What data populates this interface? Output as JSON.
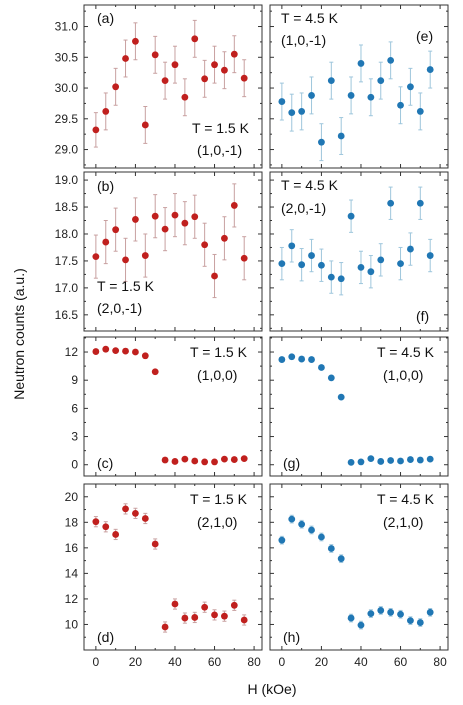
{
  "figure": {
    "ylabel": "Neutron counts (a.u.)",
    "xlabel": "H (kOe)",
    "colors": {
      "low_T": "#c0201e",
      "high_T": "#2077b4",
      "error_bar_low_T": "#c8a0a0",
      "error_bar_high_T": "#9ec6dc"
    }
  },
  "chart_data": [
    {
      "type": "scatter",
      "panel": "(a)",
      "annotation_T": "T = 1.5 K",
      "annotation_q": "(1,0,-1)",
      "color": "#c0201e",
      "xlim": [
        -6,
        84
      ],
      "ylim": [
        28.7,
        31.35
      ],
      "yticks": [
        29.0,
        29.5,
        30.0,
        30.5,
        31.0
      ],
      "ytick_labels": [
        "29.0",
        "29.5",
        "30.0",
        "30.5",
        "31.0"
      ],
      "x": [
        0,
        5,
        10,
        15,
        20,
        25,
        30,
        35,
        40,
        45,
        50,
        55,
        60,
        65,
        70,
        75
      ],
      "y": [
        29.32,
        29.62,
        30.02,
        30.48,
        30.76,
        29.4,
        30.54,
        30.12,
        30.38,
        29.85,
        30.8,
        30.15,
        30.38,
        30.29,
        30.55,
        30.16
      ],
      "yerr": [
        0.28,
        0.3,
        0.3,
        0.3,
        0.3,
        0.3,
        0.3,
        0.3,
        0.3,
        0.3,
        0.3,
        0.3,
        0.3,
        0.3,
        0.3,
        0.3
      ]
    },
    {
      "type": "scatter",
      "panel": "(b)",
      "annotation_T": "T = 1.5 K",
      "annotation_q": "(2,0,-1)",
      "color": "#c0201e",
      "xlim": [
        -6,
        84
      ],
      "ylim": [
        16.2,
        19.15
      ],
      "yticks": [
        16.5,
        17.0,
        17.5,
        18.0,
        18.5,
        19.0
      ],
      "ytick_labels": [
        "16.5",
        "17.0",
        "17.5",
        "18.0",
        "18.5",
        "19.0"
      ],
      "x": [
        0,
        5,
        10,
        15,
        20,
        25,
        30,
        35,
        40,
        45,
        50,
        55,
        60,
        65,
        70,
        75
      ],
      "y": [
        17.58,
        17.85,
        18.08,
        17.52,
        18.27,
        17.6,
        18.33,
        18.09,
        18.35,
        18.2,
        18.32,
        17.8,
        17.22,
        17.92,
        18.53,
        17.55
      ],
      "yerr": [
        0.4,
        0.4,
        0.4,
        0.4,
        0.4,
        0.4,
        0.4,
        0.4,
        0.4,
        0.4,
        0.4,
        0.4,
        0.4,
        0.4,
        0.4,
        0.4
      ]
    },
    {
      "type": "scatter",
      "panel": "(c)",
      "annotation_T": "T = 1.5 K",
      "annotation_q": "(1,0,0)",
      "color": "#c0201e",
      "xlim": [
        -6,
        84
      ],
      "ylim": [
        -1.2,
        13.6
      ],
      "yticks": [
        0,
        3,
        6,
        9,
        12
      ],
      "ytick_labels": [
        "0",
        "3",
        "6",
        "9",
        "12"
      ],
      "x": [
        0,
        5,
        10,
        15,
        20,
        25,
        30,
        35,
        40,
        45,
        50,
        55,
        60,
        65,
        70,
        75
      ],
      "y": [
        12.05,
        12.3,
        12.15,
        12.1,
        12.0,
        11.6,
        9.9,
        0.5,
        0.35,
        0.6,
        0.4,
        0.3,
        0.3,
        0.6,
        0.55,
        0.65
      ],
      "yerr": [
        0.2,
        0.2,
        0.2,
        0.2,
        0.2,
        0.2,
        0.2,
        0.2,
        0.2,
        0.2,
        0.2,
        0.2,
        0.2,
        0.2,
        0.2,
        0.2
      ]
    },
    {
      "type": "scatter",
      "panel": "(d)",
      "annotation_T": "T = 1.5 K",
      "annotation_q": "(2,1,0)",
      "color": "#c0201e",
      "xlim": [
        -6,
        84
      ],
      "ylim": [
        8.0,
        21.0
      ],
      "yticks": [
        10,
        12,
        14,
        16,
        18,
        20
      ],
      "ytick_labels": [
        "10",
        "12",
        "14",
        "16",
        "18",
        "20"
      ],
      "x": [
        0,
        5,
        10,
        15,
        20,
        25,
        30,
        35,
        40,
        45,
        50,
        55,
        60,
        65,
        70,
        75
      ],
      "y": [
        18.05,
        17.65,
        17.05,
        19.05,
        18.7,
        18.3,
        16.3,
        9.8,
        11.6,
        10.5,
        10.55,
        11.35,
        10.75,
        10.65,
        11.5,
        10.35
      ],
      "yerr": [
        0.4,
        0.4,
        0.4,
        0.4,
        0.4,
        0.4,
        0.4,
        0.4,
        0.4,
        0.4,
        0.4,
        0.4,
        0.4,
        0.4,
        0.4,
        0.4
      ]
    },
    {
      "type": "scatter",
      "panel": "(e)",
      "annotation_T": "T = 4.5 K",
      "annotation_q": "(1,0,-1)",
      "color": "#2077b4",
      "xlim": [
        -6,
        84
      ],
      "ylim": [
        28.7,
        31.35
      ],
      "yticks": [
        29.0,
        29.5,
        30.0,
        30.5,
        31.0
      ],
      "ytick_labels": [],
      "x": [
        0,
        5,
        10,
        15,
        20,
        25,
        30,
        35,
        40,
        45,
        50,
        55,
        60,
        65,
        70,
        75
      ],
      "y": [
        29.78,
        29.6,
        29.62,
        29.88,
        29.12,
        30.12,
        29.22,
        29.88,
        30.4,
        29.85,
        30.12,
        30.45,
        29.72,
        30.02,
        29.62,
        30.3
      ],
      "yerr": [
        0.3,
        0.3,
        0.3,
        0.3,
        0.3,
        0.3,
        0.3,
        0.3,
        0.3,
        0.3,
        0.3,
        0.3,
        0.3,
        0.3,
        0.3,
        0.3
      ]
    },
    {
      "type": "scatter",
      "panel": "(f)",
      "annotation_T": "T = 4.5 K",
      "annotation_q": "(2,0,-1)",
      "color": "#2077b4",
      "xlim": [
        -6,
        84
      ],
      "ylim": [
        16.2,
        19.15
      ],
      "yticks": [
        16.5,
        17.0,
        17.5,
        18.0,
        18.5,
        19.0
      ],
      "ytick_labels": [],
      "x": [
        0,
        5,
        10,
        15,
        20,
        25,
        30,
        35,
        40,
        45,
        50,
        55,
        60,
        65,
        70,
        75
      ],
      "y": [
        17.45,
        17.78,
        17.43,
        17.6,
        17.42,
        17.2,
        17.17,
        18.33,
        17.38,
        17.3,
        17.52,
        18.57,
        17.45,
        17.72,
        18.57,
        17.6
      ],
      "yerr": [
        0.3,
        0.3,
        0.3,
        0.3,
        0.3,
        0.3,
        0.3,
        0.3,
        0.3,
        0.3,
        0.3,
        0.3,
        0.3,
        0.3,
        0.3,
        0.3
      ]
    },
    {
      "type": "scatter",
      "panel": "(g)",
      "annotation_T": "T = 4.5 K",
      "annotation_q": "(1,0,0)",
      "color": "#2077b4",
      "xlim": [
        -6,
        84
      ],
      "ylim": [
        -1.2,
        13.6
      ],
      "yticks": [
        0,
        3,
        6,
        9,
        12
      ],
      "ytick_labels": [],
      "x": [
        0,
        5,
        10,
        15,
        20,
        25,
        30,
        35,
        40,
        45,
        50,
        55,
        60,
        65,
        70,
        75
      ],
      "y": [
        11.2,
        11.5,
        11.25,
        11.2,
        10.35,
        9.25,
        7.2,
        0.25,
        0.3,
        0.65,
        0.35,
        0.45,
        0.4,
        0.55,
        0.5,
        0.6
      ],
      "yerr": [
        0.2,
        0.2,
        0.2,
        0.2,
        0.2,
        0.2,
        0.2,
        0.2,
        0.2,
        0.2,
        0.2,
        0.2,
        0.2,
        0.2,
        0.2,
        0.2
      ]
    },
    {
      "type": "scatter",
      "panel": "(h)",
      "annotation_T": "T = 4.5 K",
      "annotation_q": "(2,1,0)",
      "color": "#2077b4",
      "xlim": [
        -6,
        84
      ],
      "ylim": [
        8.0,
        21.0
      ],
      "yticks": [
        10,
        12,
        14,
        16,
        18,
        20
      ],
      "ytick_labels": [],
      "x": [
        0,
        5,
        10,
        15,
        20,
        25,
        30,
        35,
        40,
        45,
        50,
        55,
        60,
        65,
        70,
        75
      ],
      "y": [
        16.6,
        18.25,
        17.85,
        17.4,
        16.85,
        15.95,
        15.15,
        10.5,
        9.95,
        10.85,
        11.1,
        10.95,
        10.8,
        10.3,
        10.15,
        10.95
      ],
      "yerr": [
        0.3,
        0.3,
        0.3,
        0.3,
        0.3,
        0.3,
        0.3,
        0.3,
        0.3,
        0.3,
        0.3,
        0.3,
        0.3,
        0.3,
        0.3,
        0.3
      ]
    }
  ],
  "xaxis": {
    "ticks": [
      0,
      20,
      40,
      60,
      80
    ],
    "tick_labels": [
      "0",
      "20",
      "40",
      "60",
      "80"
    ]
  }
}
